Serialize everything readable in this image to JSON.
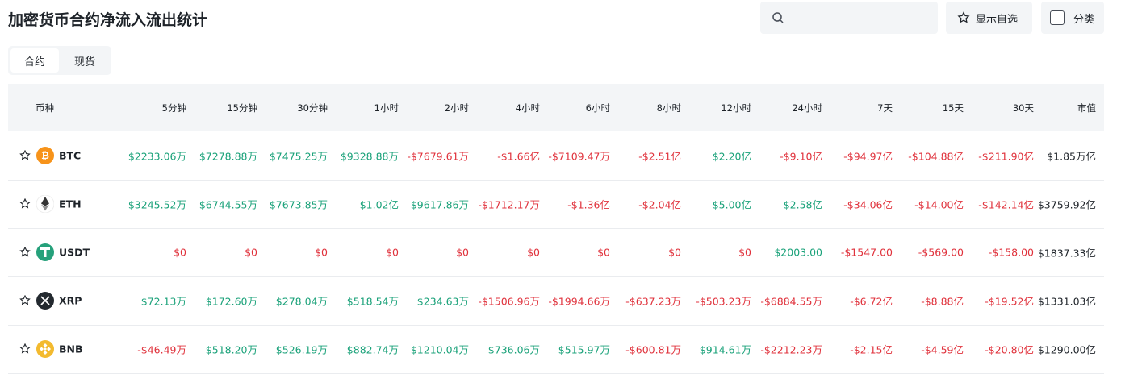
{
  "header": {
    "title": "加密货币合约净流入流出统计",
    "buttons": [
      "显示自选",
      "分类"
    ]
  },
  "tabs": [
    "合约",
    "现货"
  ],
  "table": {
    "columns": [
      "币种",
      "5分钟",
      "15分钟",
      "30分钟",
      "1小时",
      "2小时",
      "4小时",
      "6小时",
      "8小时",
      "12小时",
      "24小时",
      "7天",
      "15天",
      "30天",
      "市值"
    ],
    "rows": [
      [
        "BTC",
        "$2233.06万",
        "$7278.88万",
        "$7475.25万",
        "$9328.88万",
        "-$7679.61万",
        "-$1.66亿",
        "-$7109.47万",
        "-$2.51亿",
        "$2.20亿",
        "-$9.10亿",
        "-$94.97亿",
        "-$104.88亿",
        "-$211.90亿",
        "$1.85万亿"
      ],
      [
        "ETH",
        "$3245.52万",
        "$6744.55万",
        "$7673.85万",
        "$1.02亿",
        "$9617.86万",
        "-$1712.17万",
        "-$1.36亿",
        "-$2.04亿",
        "$5.00亿",
        "$2.58亿",
        "-$34.06亿",
        "-$14.00亿",
        "-$142.14亿",
        "$3759.92亿"
      ],
      [
        "USDT",
        "$0",
        "$0",
        "$0",
        "$0",
        "$0",
        "$0",
        "$0",
        "$0",
        "$0",
        "$2003.00",
        "-$1547.00",
        "-$569.00",
        "-$158.00",
        "$1837.33亿"
      ],
      [
        "XRP",
        "$72.13万",
        "$172.60万",
        "$278.04万",
        "$518.54万",
        "$234.63万",
        "-$1506.96万",
        "-$1994.66万",
        "-$637.23万",
        "-$503.23万",
        "-$6884.55万",
        "-$6.72亿",
        "-$8.88亿",
        "-$19.52亿",
        "$1331.03亿"
      ],
      [
        "BNB",
        "-$46.49万",
        "$518.20万",
        "$526.19万",
        "$882.74万",
        "$1210.04万",
        "$736.06万",
        "$515.97万",
        "-$600.81万",
        "$914.61万",
        "-$2212.23万",
        "-$2.15亿",
        "-$4.59亿",
        "-$20.80亿",
        "$1290.00亿"
      ]
    ]
  }
}
